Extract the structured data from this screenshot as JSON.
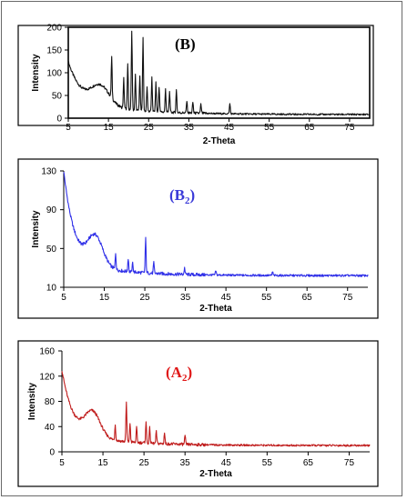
{
  "chart_data": [
    {
      "type": "line",
      "title": "(B)",
      "title_color": "#000000",
      "line_color": "#111111",
      "xlabel": "2-Theta",
      "ylabel": "Intensity",
      "xlim": [
        5,
        80
      ],
      "ylim": [
        0,
        200
      ],
      "xticks": [
        5,
        15,
        25,
        35,
        45,
        55,
        65,
        75
      ],
      "yticks": [
        0,
        50,
        100,
        150,
        200
      ],
      "baseline": {
        "start": 125,
        "decay": 3.2,
        "floor": 8,
        "hump_center": 13,
        "hump_height": 42,
        "hump_width": 3.2,
        "tail": 30,
        "tail_decay": 14
      },
      "peaks": [
        {
          "x": 15.8,
          "y": 112
        },
        {
          "x": 18.8,
          "y": 85
        },
        {
          "x": 19.8,
          "y": 118
        },
        {
          "x": 20.8,
          "y": 192
        },
        {
          "x": 21.7,
          "y": 95
        },
        {
          "x": 22.8,
          "y": 90
        },
        {
          "x": 23.6,
          "y": 175
        },
        {
          "x": 24.6,
          "y": 70
        },
        {
          "x": 25.8,
          "y": 88
        },
        {
          "x": 26.8,
          "y": 78
        },
        {
          "x": 27.6,
          "y": 70
        },
        {
          "x": 29.2,
          "y": 65
        },
        {
          "x": 30.2,
          "y": 58
        },
        {
          "x": 31.9,
          "y": 62
        },
        {
          "x": 34.5,
          "y": 38
        },
        {
          "x": 36.0,
          "y": 35
        },
        {
          "x": 38.0,
          "y": 30
        },
        {
          "x": 45.2,
          "y": 32
        }
      ],
      "grid": false,
      "border": true
    },
    {
      "type": "line",
      "title": "(B",
      "title_sub": "2",
      "title_color": "#3a3ad8",
      "line_color": "#3030e8",
      "xlabel": "2-Theta",
      "ylabel": "Intensity",
      "xlim": [
        5,
        80
      ],
      "ylim": [
        10,
        130
      ],
      "xticks": [
        5,
        15,
        25,
        35,
        45,
        55,
        65,
        75
      ],
      "yticks": [
        10,
        50,
        90,
        130
      ],
      "baseline": {
        "start": 130,
        "decay": 2.6,
        "floor": 22,
        "hump_center": 12.8,
        "hump_height": 30,
        "hump_width": 2.6,
        "tail": 15,
        "tail_decay": 12
      },
      "peaks": [
        {
          "x": 17.8,
          "y": 44
        },
        {
          "x": 20.9,
          "y": 40
        },
        {
          "x": 22.0,
          "y": 35
        },
        {
          "x": 25.2,
          "y": 60
        },
        {
          "x": 27.2,
          "y": 35
        },
        {
          "x": 34.8,
          "y": 30
        },
        {
          "x": 42.5,
          "y": 27
        },
        {
          "x": 56.5,
          "y": 26
        }
      ],
      "grid": false,
      "border": false
    },
    {
      "type": "line",
      "title": "(A",
      "title_sub": "2",
      "title_color": "#e01818",
      "line_color": "#c01c1c",
      "xlabel": "2-Theta",
      "ylabel": "Intensity",
      "xlim": [
        5,
        80
      ],
      "ylim": [
        0,
        160
      ],
      "xticks": [
        5,
        15,
        25,
        35,
        45,
        55,
        65,
        75
      ],
      "yticks": [
        0,
        40,
        80,
        120,
        160
      ],
      "baseline": {
        "start": 130,
        "decay": 2.6,
        "floor": 10,
        "hump_center": 12.5,
        "hump_height": 38,
        "hump_width": 2.6,
        "tail": 22,
        "tail_decay": 12
      },
      "peaks": [
        {
          "x": 18.0,
          "y": 42
        },
        {
          "x": 20.7,
          "y": 78
        },
        {
          "x": 21.6,
          "y": 45
        },
        {
          "x": 23.2,
          "y": 38
        },
        {
          "x": 25.5,
          "y": 48
        },
        {
          "x": 26.4,
          "y": 38
        },
        {
          "x": 28.0,
          "y": 32
        },
        {
          "x": 30.0,
          "y": 30
        },
        {
          "x": 35.0,
          "y": 25
        }
      ],
      "grid": false,
      "border": false
    }
  ]
}
